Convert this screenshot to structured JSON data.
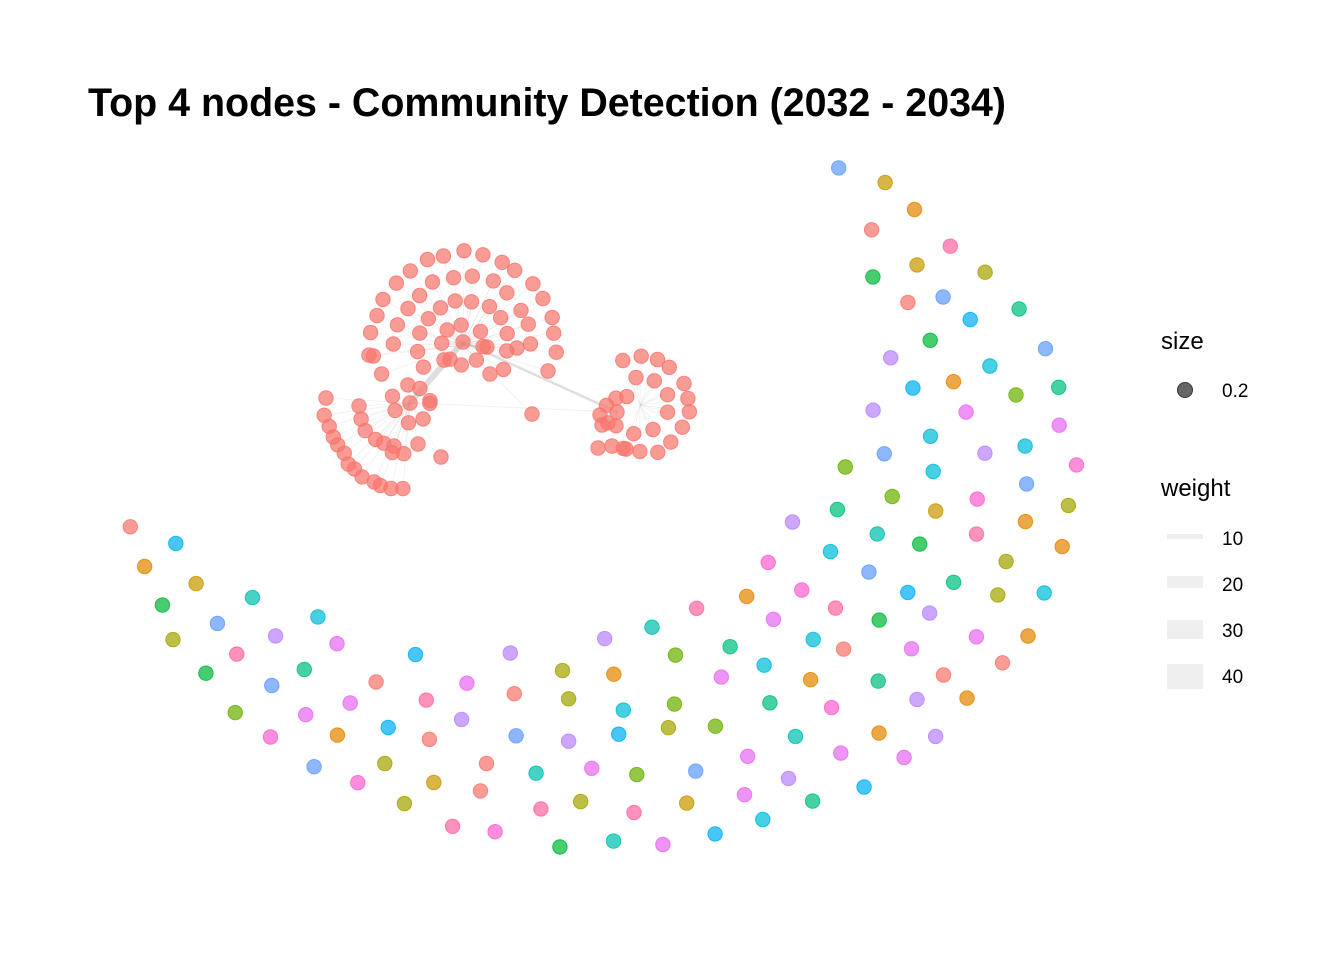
{
  "title": "Top 4 nodes - Community Detection (2032 - 2034)",
  "legend": {
    "size": {
      "title": "size",
      "items": [
        {
          "label": "0.2"
        }
      ]
    },
    "weight": {
      "title": "weight",
      "items": [
        {
          "label": "10",
          "value": 10
        },
        {
          "label": "20",
          "value": 20
        },
        {
          "label": "30",
          "value": 30
        },
        {
          "label": "40",
          "value": 40
        }
      ]
    }
  },
  "colors": {
    "main_community": "#F8766D",
    "edge": "#a0a0a0",
    "weight_key": "#efefef",
    "size_key": "#555555",
    "community_palette": [
      "#F8766D",
      "#E58700",
      "#C99800",
      "#A3A500",
      "#6BB100",
      "#00BA38",
      "#00BF7D",
      "#00C0AF",
      "#00BCD8",
      "#00B0F6",
      "#619CFF",
      "#B983FF",
      "#E76BF3",
      "#FD61D1",
      "#FF67A4"
    ]
  }
}
